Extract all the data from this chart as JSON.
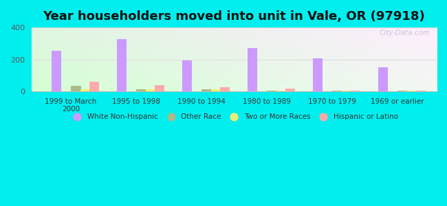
{
  "title": "Year householders moved into unit in Vale, OR (97918)",
  "categories": [
    "1999 to March\n2000",
    "1995 to 1998",
    "1990 to 1994",
    "1980 to 1989",
    "1970 to 1979",
    "1969 or earlier"
  ],
  "series": {
    "White Non-Hispanic": [
      255,
      328,
      193,
      272,
      205,
      152
    ],
    "Other Race": [
      37,
      15,
      13,
      5,
      5,
      5
    ],
    "Two or More Races": [
      12,
      13,
      13,
      3,
      3,
      7
    ],
    "Hispanic or Latino": [
      62,
      40,
      27,
      18,
      7,
      7
    ]
  },
  "colors": {
    "White Non-Hispanic": "#cc99ff",
    "Other Race": "#aabb88",
    "Two or More Races": "#eeee77",
    "Hispanic or Latino": "#ffaaaa"
  },
  "ylim": [
    0,
    400
  ],
  "yticks": [
    0,
    200,
    400
  ],
  "bar_width": 0.15,
  "background_outer": "#00eeee",
  "grid_color": "#dddddd",
  "title_fontsize": 13,
  "watermark": "City-Data.com"
}
